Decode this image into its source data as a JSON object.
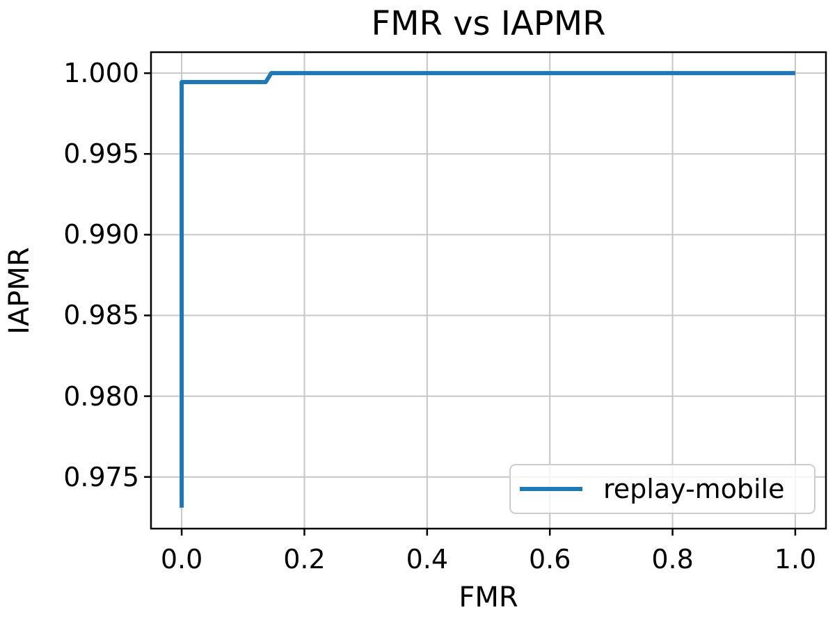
{
  "chart_data": {
    "type": "line",
    "title": "FMR vs IAPMR",
    "xlabel": "FMR",
    "ylabel": "IAPMR",
    "xlim": [
      -0.05,
      1.05
    ],
    "ylim": [
      0.9718,
      1.0013
    ],
    "x_ticks": [
      0.0,
      0.2,
      0.4,
      0.6,
      0.8,
      1.0
    ],
    "x_tick_labels": [
      "0.0",
      "0.2",
      "0.4",
      "0.6",
      "0.8",
      "1.0"
    ],
    "y_ticks": [
      1.0,
      0.995,
      0.99,
      0.985,
      0.98,
      0.975
    ],
    "y_tick_labels": [
      "1.000",
      "0.995",
      "0.990",
      "0.985",
      "0.980",
      "0.975"
    ],
    "grid": true,
    "legend": {
      "position": "lower right",
      "entries": [
        {
          "label": "replay-mobile",
          "color": "#1f77b4"
        }
      ]
    },
    "series": [
      {
        "name": "replay-mobile",
        "color": "#1f77b4",
        "points": [
          [
            0.0,
            0.9731
          ],
          [
            0.0,
            0.99945
          ],
          [
            0.137,
            0.99945
          ],
          [
            0.146,
            1.0
          ],
          [
            1.0,
            1.0
          ]
        ]
      }
    ],
    "colors": {
      "line": "#1f77b4",
      "grid": "#c6c6c6",
      "axis": "#000000",
      "legend_border": "#cccccc",
      "background": "#ffffff"
    }
  }
}
